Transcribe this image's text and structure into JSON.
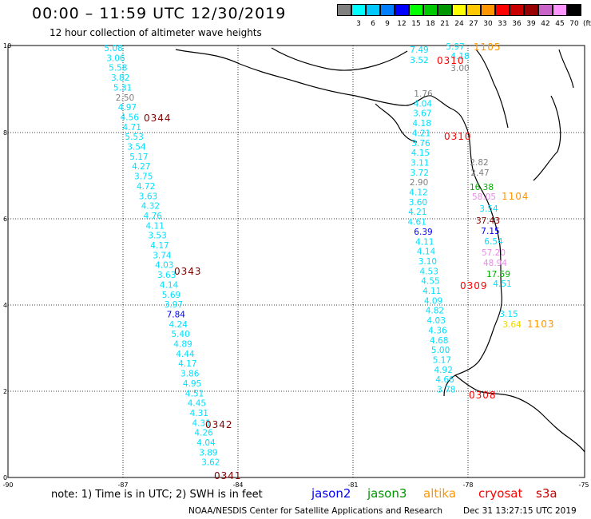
{
  "title": "00:00 – 11:59 UTC 12/30/2019",
  "subtitle": "12 hour collection of altimeter wave heights",
  "legend": {
    "unit": "(ft)",
    "swatches": [
      {
        "label": "",
        "color": "#808080"
      },
      {
        "label": "3",
        "color": "#00ffff"
      },
      {
        "label": "6",
        "color": "#00c8ff"
      },
      {
        "label": "9",
        "color": "#0080ff"
      },
      {
        "label": "12",
        "color": "#0000ff"
      },
      {
        "label": "15",
        "color": "#00ff00"
      },
      {
        "label": "18",
        "color": "#00c800"
      },
      {
        "label": "21",
        "color": "#009600"
      },
      {
        "label": "24",
        "color": "#ffff00"
      },
      {
        "label": "27",
        "color": "#ffc800"
      },
      {
        "label": "30",
        "color": "#ff9600"
      },
      {
        "label": "33",
        "color": "#ff0000"
      },
      {
        "label": "36",
        "color": "#c80000"
      },
      {
        "label": "39",
        "color": "#960000"
      },
      {
        "label": "42",
        "color": "#c864c8"
      },
      {
        "label": "45",
        "color": "#ff96ff"
      },
      {
        "label": "70",
        "color": "#000000"
      }
    ]
  },
  "axes": {
    "x_ticks": [
      "-90",
      "-87",
      "-84",
      "-81",
      "-78",
      "-75"
    ],
    "y_ticks": [
      "10",
      "8",
      "6",
      "4",
      "2",
      "0"
    ]
  },
  "colors": {
    "cyan": "#00e0ff",
    "gray": "#808080",
    "green": "#00b000",
    "yellow": "#f0d800",
    "pink": "#e88ce8",
    "darkred": "#800000",
    "red": "#ff0000",
    "orange": "#ff9600",
    "blue": "#0000ff"
  },
  "west_track": [
    {
      "v": "5.08",
      "c": "cyan"
    },
    {
      "v": "3.06",
      "c": "cyan"
    },
    {
      "v": "5.58",
      "c": "cyan"
    },
    {
      "v": "3.82",
      "c": "cyan"
    },
    {
      "v": "5.31",
      "c": "cyan"
    },
    {
      "v": "2.50",
      "c": "gray"
    },
    {
      "v": "4.97",
      "c": "cyan"
    },
    {
      "v": "4.56",
      "c": "cyan"
    },
    {
      "v": "4.71",
      "c": "cyan"
    },
    {
      "v": "5.53",
      "c": "cyan"
    },
    {
      "v": "3.54",
      "c": "cyan"
    },
    {
      "v": "5.17",
      "c": "cyan"
    },
    {
      "v": "4.27",
      "c": "cyan"
    },
    {
      "v": "3.75",
      "c": "cyan"
    },
    {
      "v": "4.72",
      "c": "cyan"
    },
    {
      "v": "3.63",
      "c": "cyan"
    },
    {
      "v": "4.32",
      "c": "cyan"
    },
    {
      "v": "4.76",
      "c": "cyan"
    },
    {
      "v": "4.11",
      "c": "cyan"
    },
    {
      "v": "3.53",
      "c": "cyan"
    },
    {
      "v": "4.17",
      "c": "cyan"
    },
    {
      "v": "3.74",
      "c": "cyan"
    },
    {
      "v": "4.03",
      "c": "cyan"
    },
    {
      "v": "3.63",
      "c": "cyan"
    },
    {
      "v": "4.14",
      "c": "cyan"
    },
    {
      "v": "5.69",
      "c": "cyan"
    },
    {
      "v": "3.97",
      "c": "cyan"
    },
    {
      "v": "7.84",
      "c": "blue"
    },
    {
      "v": "4.24",
      "c": "cyan"
    },
    {
      "v": "5.40",
      "c": "cyan"
    },
    {
      "v": "4.89",
      "c": "cyan"
    },
    {
      "v": "4.44",
      "c": "cyan"
    },
    {
      "v": "4.17",
      "c": "cyan"
    },
    {
      "v": "3.86",
      "c": "cyan"
    },
    {
      "v": "4.95",
      "c": "cyan"
    },
    {
      "v": "4.51",
      "c": "cyan"
    },
    {
      "v": "4.45",
      "c": "cyan"
    },
    {
      "v": "4.31",
      "c": "cyan"
    },
    {
      "v": "4.31",
      "c": "cyan"
    },
    {
      "v": "4.26",
      "c": "cyan"
    },
    {
      "v": "4.04",
      "c": "cyan"
    },
    {
      "v": "3.89",
      "c": "cyan"
    },
    {
      "v": "3.62",
      "c": "cyan"
    }
  ],
  "east_track": [
    {
      "v": "1.76",
      "c": "gray"
    },
    {
      "v": "4.04",
      "c": "cyan"
    },
    {
      "v": "3.67",
      "c": "cyan"
    },
    {
      "v": "4.18",
      "c": "cyan"
    },
    {
      "v": "4.21",
      "c": "cyan"
    },
    {
      "v": "3.76",
      "c": "cyan"
    },
    {
      "v": "4.15",
      "c": "cyan"
    },
    {
      "v": "3.11",
      "c": "cyan"
    },
    {
      "v": "3.72",
      "c": "cyan"
    },
    {
      "v": "2.90",
      "c": "gray"
    },
    {
      "v": "4.12",
      "c": "cyan"
    },
    {
      "v": "3.60",
      "c": "cyan"
    },
    {
      "v": "4.21",
      "c": "cyan"
    },
    {
      "v": "4.61",
      "c": "cyan"
    },
    {
      "v": "6.39",
      "c": "blue"
    },
    {
      "v": "4.11",
      "c": "cyan"
    },
    {
      "v": "4.14",
      "c": "cyan"
    },
    {
      "v": "3.10",
      "c": "cyan"
    },
    {
      "v": "4.53",
      "c": "cyan"
    },
    {
      "v": "4.55",
      "c": "cyan"
    },
    {
      "v": "4.11",
      "c": "cyan"
    },
    {
      "v": "4.09",
      "c": "cyan"
    },
    {
      "v": "4.82",
      "c": "cyan"
    },
    {
      "v": "4.03",
      "c": "cyan"
    },
    {
      "v": "4.36",
      "c": "cyan"
    },
    {
      "v": "4.68",
      "c": "cyan"
    },
    {
      "v": "5.00",
      "c": "cyan"
    },
    {
      "v": "5.17",
      "c": "cyan"
    },
    {
      "v": "4.92",
      "c": "cyan"
    },
    {
      "v": "4.66",
      "c": "cyan"
    },
    {
      "v": "3.78",
      "c": "cyan"
    }
  ],
  "north_points": [
    {
      "v": "7.49",
      "c": "cyan"
    },
    {
      "v": "3.52",
      "c": "cyan"
    },
    {
      "v": "5.97",
      "c": "cyan"
    },
    {
      "v": "4.18",
      "c": "cyan"
    },
    {
      "v": "3.00",
      "c": "gray"
    }
  ],
  "coast_points": [
    {
      "v": "2.82",
      "c": "gray"
    },
    {
      "v": "2.47",
      "c": "gray"
    },
    {
      "v": "16.38",
      "c": "green"
    },
    {
      "v": "58.05",
      "c": "pink"
    },
    {
      "v": "3.54",
      "c": "cyan"
    },
    {
      "v": "37.43",
      "c": "darkred"
    },
    {
      "v": "7.15",
      "c": "blue"
    },
    {
      "v": "6.54",
      "c": "cyan"
    },
    {
      "v": "57.20",
      "c": "pink"
    },
    {
      "v": "48.94",
      "c": "pink"
    },
    {
      "v": "17.59",
      "c": "green"
    },
    {
      "v": "4.51",
      "c": "cyan"
    },
    {
      "v": "3.15",
      "c": "cyan"
    },
    {
      "v": "3.64",
      "c": "yellow"
    }
  ],
  "pass_labels": [
    {
      "text": "0344",
      "c": "darkred"
    },
    {
      "text": "0343",
      "c": "darkred"
    },
    {
      "text": "0342",
      "c": "darkred"
    },
    {
      "text": "0341",
      "c": "darkred"
    },
    {
      "text": "1105",
      "c": "orange"
    },
    {
      "text": "0310",
      "c": "red"
    },
    {
      "text": "0310",
      "c": "red"
    },
    {
      "text": "1104",
      "c": "orange"
    },
    {
      "text": "0309",
      "c": "red"
    },
    {
      "text": "1103",
      "c": "orange"
    },
    {
      "text": "0308",
      "c": "red"
    }
  ],
  "note": "note: 1) Time is in UTC; 2) SWH is in feet",
  "satellites": [
    {
      "name": "jason2",
      "color": "#0000ff"
    },
    {
      "name": "jason3",
      "color": "#009600"
    },
    {
      "name": "altika",
      "color": "#ff9600"
    },
    {
      "name": "cryosat",
      "color": "#ff0000"
    },
    {
      "name": "s3a",
      "color": "#c80000"
    }
  ],
  "footer": "NOAA/NESDIS Center for Satellite Applications and Research",
  "timestamp": "Dec 31 13:27:15 UTC 2019"
}
